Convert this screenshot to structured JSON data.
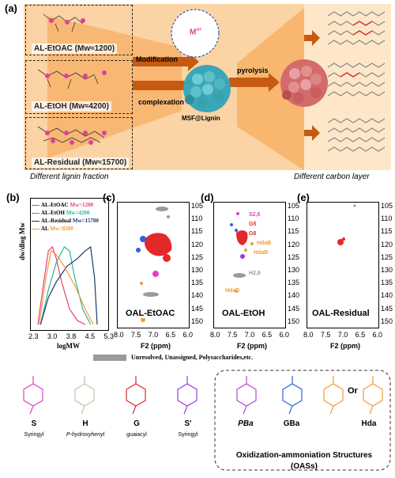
{
  "panel_a": {
    "label": "(a)",
    "fractions": [
      {
        "name": "AL-EtOAC (Mw≈1200)"
      },
      {
        "name": "AL-EtOH (Mw≈4200)"
      },
      {
        "name": "AL-Residual (Mw≈15700)"
      }
    ],
    "step_modification": "Modification",
    "step_complexation": "complexation",
    "step_pyrolysis": "pyrolysis",
    "particle_label": "MSF@Lignin",
    "metal_label": "M",
    "metal_sup": "n+",
    "caption_left": "Different lignin fraction",
    "caption_right": "Different carbon layer",
    "colors": {
      "band": "#f7b268",
      "pink": "#e0409a",
      "teal": "#3aa7b8",
      "sphere_red": "#d36b6b"
    }
  },
  "panel_b": {
    "label": "(b)",
    "ylabel": "dw/dlog Mw",
    "xlabel": "logMW",
    "xticks": [
      "2.3",
      "3.0",
      "3.8",
      "4.5",
      "5.3"
    ],
    "legend": [
      {
        "name": "AL-EtOAC",
        "mw": "Mw=1200",
        "color": "#e8407a"
      },
      {
        "name": "AL-EtOH",
        "mw": "Mw=4200",
        "color": "#2ab49a"
      },
      {
        "name": "AL-Residual",
        "mw": "Mw=15700",
        "color": "#1c3a6e"
      },
      {
        "name": "AL",
        "mw": "Mw=8300",
        "color": "#f39a3a"
      }
    ]
  },
  "chart_data": {
    "type": "line",
    "xlabel": "logMW",
    "ylabel": "dw/dlog Mw",
    "xlim": [
      2.3,
      5.3
    ],
    "series": [
      {
        "name": "AL-EtOAC Mw=1200",
        "x": [
          2.6,
          2.8,
          3.0,
          3.15,
          3.3,
          3.5,
          3.8,
          4.1,
          4.4
        ],
        "y": [
          0.0,
          0.5,
          0.95,
          1.0,
          0.85,
          0.55,
          0.2,
          0.05,
          0.0
        ]
      },
      {
        "name": "AL-EtOH Mw=4200",
        "x": [
          2.7,
          3.0,
          3.3,
          3.6,
          3.8,
          4.0,
          4.3,
          4.6
        ],
        "y": [
          0.0,
          0.45,
          0.8,
          1.0,
          0.95,
          0.6,
          0.2,
          0.0
        ]
      },
      {
        "name": "AL-Residual Mw=15700",
        "x": [
          2.7,
          3.0,
          3.3,
          3.7,
          4.1,
          4.4,
          4.6,
          4.75,
          4.85
        ],
        "y": [
          0.0,
          0.35,
          0.55,
          0.75,
          0.85,
          0.95,
          1.0,
          0.6,
          0.0
        ]
      },
      {
        "name": "AL Mw=8300",
        "x": [
          2.65,
          2.9,
          3.1,
          3.3,
          3.6,
          4.0,
          4.4,
          4.7
        ],
        "y": [
          0.0,
          0.6,
          0.95,
          0.9,
          0.75,
          0.5,
          0.2,
          0.0
        ]
      }
    ]
  },
  "nmr": {
    "c": {
      "label": "(c)",
      "sample": "OAL-EtOAC"
    },
    "d": {
      "label": "(d)",
      "sample": "OAL-EtOH",
      "annotations": [
        "S2,6",
        "G5",
        "G6",
        "HdaB",
        "HdaB",
        "H2,6",
        "HdaD"
      ]
    },
    "e": {
      "label": "(e)",
      "sample": "OAL-Residual"
    },
    "x_axis_label": "F2 (ppm)",
    "x_ticks": [
      "8.0",
      "7.5",
      "7.0",
      "6.5",
      "6.0"
    ],
    "y_ticks": [
      "105",
      "110",
      "115",
      "120",
      "125",
      "130",
      "135",
      "140",
      "145",
      "150"
    ]
  },
  "legend_gray": "Unresolved, Unassigned, Polysaccharides,etc.",
  "structures": [
    {
      "code": "S",
      "name": "Syringyl",
      "color": "#e040c8"
    },
    {
      "code": "H",
      "name": "P-hydroxyhenyl",
      "color": "#b9c8a8"
    },
    {
      "code": "G",
      "name": "guaiacyl",
      "color": "#e32929"
    },
    {
      "code": "S'",
      "name": "Syringyl",
      "color": "#9a3be0"
    },
    {
      "code": "PBa",
      "name": "",
      "color": "#c040e0"
    },
    {
      "code": "GBa",
      "name": "",
      "color": "#2f5fe6"
    },
    {
      "code": "Hda",
      "name": "",
      "color": "#f39a3a"
    }
  ],
  "or_label": "Or",
  "oas_title": "Oxidization-ammoniation Structures",
  "oas_sub": "(OASs)"
}
